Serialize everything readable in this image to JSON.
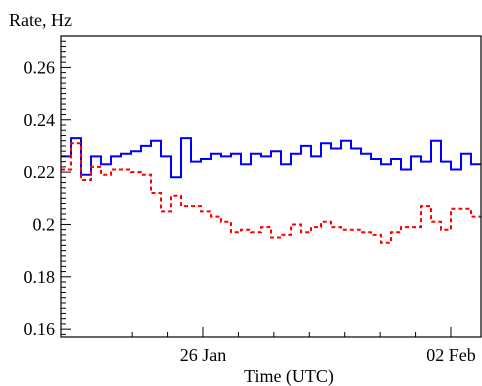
{
  "chart_data": {
    "type": "line",
    "ylabel": "Rate, Hz",
    "xlabel": "Time (UTC)",
    "ylim": [
      0.157,
      0.272
    ],
    "xlim": [
      0,
      42
    ],
    "x_tick_labels": [
      {
        "x": 14.2,
        "label": "26 Jan"
      },
      {
        "x": 39.0,
        "label": "02 Feb"
      }
    ],
    "y_ticks": [
      0.16,
      0.18,
      0.2,
      0.22,
      0.24,
      0.26
    ],
    "y_tick_labels": [
      "0.16",
      "0.18",
      "0.2",
      "0.22",
      "0.24",
      "0.26"
    ],
    "step_width": 1,
    "series": [
      {
        "color": "#0000ff",
        "dash": "solid",
        "x": [
          0,
          1,
          2,
          3,
          4,
          5,
          6,
          7,
          8,
          9,
          10,
          11,
          12,
          13,
          14,
          15,
          16,
          17,
          18,
          19,
          20,
          21,
          22,
          23,
          24,
          25,
          26,
          27,
          28,
          29,
          30,
          31,
          32,
          33,
          34,
          35,
          36,
          37,
          38,
          39,
          40,
          41
        ],
        "values": [
          0.226,
          0.233,
          0.219,
          0.226,
          0.223,
          0.226,
          0.227,
          0.228,
          0.23,
          0.232,
          0.226,
          0.218,
          0.233,
          0.224,
          0.225,
          0.227,
          0.226,
          0.227,
          0.223,
          0.227,
          0.226,
          0.228,
          0.223,
          0.227,
          0.23,
          0.226,
          0.231,
          0.229,
          0.232,
          0.229,
          0.227,
          0.225,
          0.223,
          0.225,
          0.221,
          0.226,
          0.224,
          0.232,
          0.224,
          0.221,
          0.227,
          0.223
        ]
      },
      {
        "color": "#ff0000",
        "dash": "dashed",
        "x": [
          0,
          1,
          2,
          3,
          4,
          5,
          6,
          7,
          8,
          9,
          10,
          11,
          12,
          13,
          14,
          15,
          16,
          17,
          18,
          19,
          20,
          21,
          22,
          23,
          24,
          25,
          26,
          27,
          28,
          29,
          30,
          31,
          32,
          33,
          34,
          35,
          36,
          37,
          38,
          39,
          40,
          41
        ],
        "values": [
          0.221,
          0.231,
          0.217,
          0.222,
          0.219,
          0.221,
          0.221,
          0.22,
          0.219,
          0.212,
          0.205,
          0.211,
          0.207,
          0.207,
          0.205,
          0.203,
          0.201,
          0.197,
          0.198,
          0.197,
          0.199,
          0.195,
          0.196,
          0.2,
          0.197,
          0.199,
          0.201,
          0.199,
          0.198,
          0.198,
          0.197,
          0.196,
          0.193,
          0.197,
          0.199,
          0.199,
          0.207,
          0.201,
          0.198,
          0.206,
          0.206,
          0.203
        ]
      }
    ]
  }
}
